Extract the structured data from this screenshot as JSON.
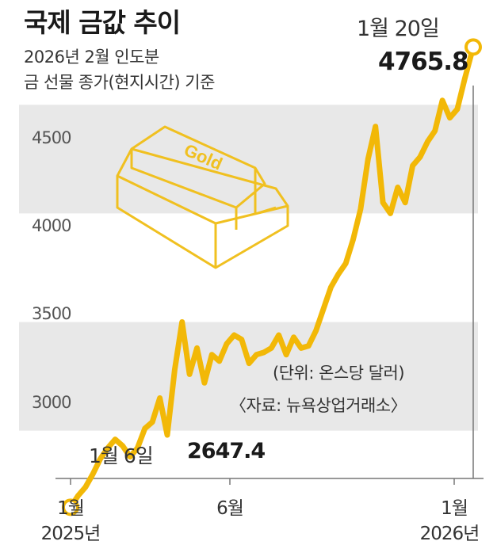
{
  "title": "국제 금값 추이",
  "subtitle_line1": "2026년 2월 인도분",
  "subtitle_line2": "금 선물 종가(현지시간) 기준",
  "unit_note": "(단위: 온스당 달러)",
  "source_note": "〈자료: 뉴욕상업거래소〉",
  "start_label": {
    "date": "1월 6일",
    "value": "2647.4"
  },
  "end_label": {
    "date": "1월 20일",
    "value": "4765.8"
  },
  "x_ticks": [
    {
      "month": "1월",
      "year": "2025년"
    },
    {
      "month": "6월",
      "year": ""
    },
    {
      "month": "1월",
      "year": "2026년"
    }
  ],
  "y_ticks": [
    "4500",
    "4000",
    "3500",
    "3000"
  ],
  "colors": {
    "line": "#F2B807",
    "band": "#E8E8E8",
    "axis": "#777777",
    "marker_fill": "#FFFFFF"
  },
  "icon": "gold-bar-icon",
  "gold_bar_text": "Gold",
  "chart_data": {
    "type": "line",
    "title": "국제 금값 추이",
    "ylabel": "(단위: 온스당 달러)",
    "x_start": "2025-01-06",
    "x_end": "2026-01-20",
    "ylim": [
      2780,
      4800
    ],
    "y_ticks": [
      3000,
      3500,
      4000,
      4500
    ],
    "bands": [
      [
        4000,
        4500
      ],
      [
        3000,
        3500
      ]
    ],
    "series": [
      {
        "values": [
          [
            "2025-01-06",
            2647.4
          ],
          [
            "2025-01-13",
            2700
          ],
          [
            "2025-01-20",
            2740
          ],
          [
            "2025-01-27",
            2800
          ],
          [
            "2025-02-03",
            2870
          ],
          [
            "2025-02-10",
            2920
          ],
          [
            "2025-02-17",
            2960
          ],
          [
            "2025-02-24",
            2930
          ],
          [
            "2025-03-03",
            2880
          ],
          [
            "2025-03-10",
            2920
          ],
          [
            "2025-03-17",
            3010
          ],
          [
            "2025-03-24",
            3040
          ],
          [
            "2025-03-31",
            3150
          ],
          [
            "2025-04-07",
            2980
          ],
          [
            "2025-04-14",
            3280
          ],
          [
            "2025-04-21",
            3500
          ],
          [
            "2025-04-28",
            3260
          ],
          [
            "2025-05-05",
            3380
          ],
          [
            "2025-05-12",
            3220
          ],
          [
            "2025-05-19",
            3350
          ],
          [
            "2025-05-26",
            3320
          ],
          [
            "2025-06-02",
            3400
          ],
          [
            "2025-06-09",
            3440
          ],
          [
            "2025-06-16",
            3420
          ],
          [
            "2025-06-23",
            3310
          ],
          [
            "2025-06-30",
            3350
          ],
          [
            "2025-07-07",
            3360
          ],
          [
            "2025-07-14",
            3380
          ],
          [
            "2025-07-21",
            3440
          ],
          [
            "2025-07-28",
            3350
          ],
          [
            "2025-08-04",
            3430
          ],
          [
            "2025-08-11",
            3380
          ],
          [
            "2025-08-18",
            3390
          ],
          [
            "2025-08-25",
            3460
          ],
          [
            "2025-09-01",
            3560
          ],
          [
            "2025-09-08",
            3660
          ],
          [
            "2025-09-15",
            3720
          ],
          [
            "2025-09-22",
            3770
          ],
          [
            "2025-09-29",
            3880
          ],
          [
            "2025-10-06",
            4020
          ],
          [
            "2025-10-13",
            4250
          ],
          [
            "2025-10-20",
            4400
          ],
          [
            "2025-10-27",
            4050
          ],
          [
            "2025-11-03",
            4000
          ],
          [
            "2025-11-10",
            4120
          ],
          [
            "2025-11-17",
            4050
          ],
          [
            "2025-11-24",
            4220
          ],
          [
            "2025-12-01",
            4260
          ],
          [
            "2025-12-08",
            4330
          ],
          [
            "2025-12-15",
            4380
          ],
          [
            "2025-12-22",
            4520
          ],
          [
            "2025-12-29",
            4440
          ],
          [
            "2026-01-05",
            4480
          ],
          [
            "2026-01-12",
            4620
          ],
          [
            "2026-01-20",
            4765.8
          ]
        ]
      }
    ]
  }
}
